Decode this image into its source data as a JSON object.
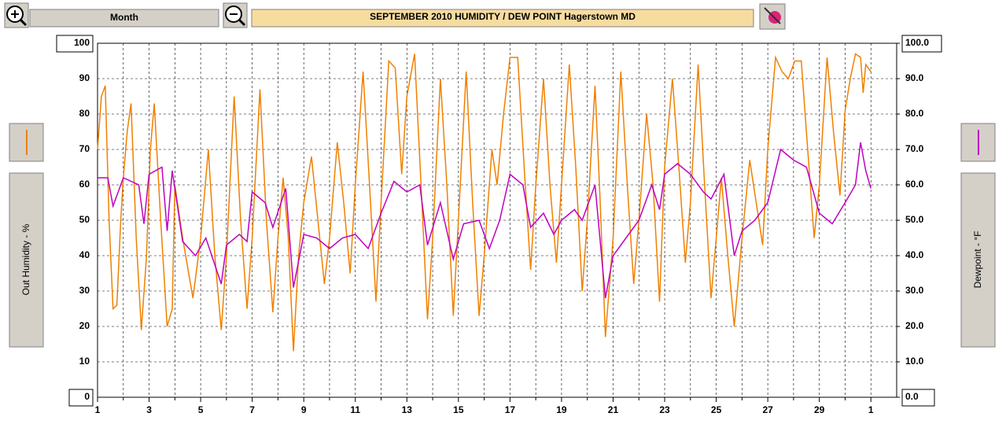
{
  "toolbar": {
    "period": "Month"
  },
  "chart_data": {
    "type": "line",
    "title": "SEPTEMBER   2010     HUMIDITY / DEW POINT  Hagerstown MD",
    "ylabel": "Out Humidity - %",
    "y2label": "Dewpoint - °F",
    "xlim": [
      1,
      32
    ],
    "xticks": [
      1,
      3,
      5,
      7,
      9,
      11,
      13,
      15,
      17,
      19,
      21,
      23,
      25,
      27,
      29,
      {
        "value": 31,
        "label": "1"
      }
    ],
    "xminor": [
      2,
      4,
      6,
      8,
      10,
      12,
      14,
      16,
      18,
      20,
      22,
      24,
      26,
      28,
      30
    ],
    "ylim": [
      0,
      100
    ],
    "yticks": [
      0,
      10,
      20,
      30,
      40,
      50,
      60,
      70,
      80,
      90,
      100
    ],
    "y2lim": [
      0,
      100
    ],
    "y2ticks": [
      {
        "value": 0,
        "label": "0.0"
      },
      {
        "value": 10,
        "label": "10.0"
      },
      {
        "value": 20,
        "label": "20.0"
      },
      {
        "value": 30,
        "label": "30.0"
      },
      {
        "value": 40,
        "label": "40.0"
      },
      {
        "value": 50,
        "label": "50.0"
      },
      {
        "value": 60,
        "label": "60.0"
      },
      {
        "value": 70,
        "label": "70.0"
      },
      {
        "value": 80,
        "label": "80.0"
      },
      {
        "value": 90,
        "label": "90.0"
      },
      {
        "value": 100,
        "label": "100.0"
      }
    ],
    "grid": true,
    "series": [
      {
        "color": "#f08000",
        "x": [
          1,
          1.15,
          1.3,
          1.45,
          1.6,
          1.75,
          1.9,
          2.0,
          2.15,
          2.3,
          2.5,
          2.7,
          2.9,
          3.05,
          3.2,
          3.45,
          3.7,
          3.9,
          4.0,
          4.3,
          4.7,
          5.0,
          5.3,
          5.55,
          5.8,
          6.0,
          6.3,
          6.55,
          6.8,
          7.0,
          7.3,
          7.55,
          7.8,
          8.0,
          8.2,
          8.4,
          8.6,
          8.8,
          9.0,
          9.3,
          9.55,
          9.8,
          10.0,
          10.3,
          10.55,
          10.8,
          11.0,
          11.3,
          11.55,
          11.8,
          12.0,
          12.3,
          12.55,
          12.8,
          13.0,
          13.3,
          13.55,
          13.8,
          14.0,
          14.3,
          14.55,
          14.8,
          15.0,
          15.3,
          15.55,
          15.8,
          16.0,
          16.3,
          16.5,
          16.75,
          17.0,
          17.3,
          17.55,
          17.8,
          18.0,
          18.3,
          18.55,
          18.8,
          19.0,
          19.3,
          19.55,
          19.8,
          20.0,
          20.3,
          20.5,
          20.7,
          21.0,
          21.3,
          21.55,
          21.8,
          22.0,
          22.3,
          22.55,
          22.8,
          23.0,
          23.3,
          23.55,
          23.8,
          24.0,
          24.3,
          24.55,
          24.8,
          25.0,
          25.2,
          25.45,
          25.7,
          26.0,
          26.3,
          26.55,
          26.8,
          27.0,
          27.3,
          27.55,
          27.8,
          28.05,
          28.3,
          28.55,
          28.8,
          29.0,
          29.3,
          29.55,
          29.8,
          30.0,
          30.2,
          30.4,
          30.6,
          30.7,
          30.8,
          31.0
        ],
        "values": [
          70,
          85,
          88,
          50,
          25,
          26,
          50,
          62,
          75,
          83,
          45,
          19,
          40,
          70,
          83,
          50,
          20,
          25,
          60,
          45,
          28,
          45,
          70,
          40,
          19,
          40,
          85,
          50,
          25,
          45,
          87,
          50,
          24,
          45,
          62,
          45,
          13,
          40,
          55,
          68,
          50,
          32,
          45,
          72,
          55,
          35,
          60,
          92,
          60,
          27,
          55,
          95,
          93,
          63,
          85,
          97,
          60,
          22,
          45,
          90,
          60,
          23,
          50,
          92,
          55,
          23,
          40,
          70,
          60,
          80,
          96,
          96,
          65,
          36,
          60,
          90,
          60,
          38,
          60,
          94,
          65,
          30,
          50,
          88,
          55,
          17,
          45,
          92,
          60,
          32,
          50,
          80,
          60,
          27,
          65,
          90,
          65,
          38,
          55,
          94,
          60,
          28,
          45,
          62,
          40,
          20,
          45,
          67,
          55,
          43,
          70,
          96,
          92,
          90,
          95,
          95,
          70,
          45,
          60,
          96,
          75,
          57,
          81,
          90,
          97,
          96,
          86,
          94,
          92
        ]
      },
      {
        "color": "#c000c0",
        "axis": "y2",
        "x": [
          1,
          1.4,
          1.6,
          2.0,
          2.6,
          2.8,
          3.0,
          3.5,
          3.7,
          3.9,
          4.3,
          4.8,
          5.2,
          5.8,
          6.0,
          6.5,
          6.8,
          7.0,
          7.5,
          7.8,
          8.3,
          8.6,
          9.0,
          9.5,
          10.0,
          10.5,
          11.0,
          11.5,
          12.0,
          12.5,
          13.0,
          13.5,
          13.8,
          14.3,
          14.8,
          15.2,
          15.8,
          16.2,
          16.6,
          17.0,
          17.5,
          17.8,
          18.3,
          18.7,
          19.0,
          19.5,
          19.8,
          20.3,
          20.7,
          21.0,
          21.5,
          22.0,
          22.5,
          22.8,
          23.0,
          23.5,
          24.0,
          24.5,
          24.8,
          25.3,
          25.7,
          26.0,
          26.5,
          27.0,
          27.5,
          28.0,
          28.5,
          29.0,
          29.5,
          30.0,
          30.4,
          30.6,
          30.8,
          31.0
        ],
        "values": [
          62,
          62,
          54,
          62,
          60,
          49,
          63,
          65,
          47,
          64,
          44,
          40,
          45,
          32,
          43,
          46,
          44,
          58,
          55,
          48,
          59,
          31,
          46,
          45,
          42,
          45,
          46,
          42,
          52,
          61,
          58,
          60,
          43,
          55,
          39,
          49,
          50,
          42,
          50,
          63,
          60,
          48,
          52,
          46,
          50,
          53,
          50,
          60,
          28,
          40,
          45,
          50,
          60,
          53,
          63,
          66,
          63,
          58,
          56,
          63,
          40,
          47,
          50,
          55,
          70,
          67,
          65,
          52,
          49,
          55,
          60,
          72,
          64,
          59
        ]
      }
    ]
  }
}
